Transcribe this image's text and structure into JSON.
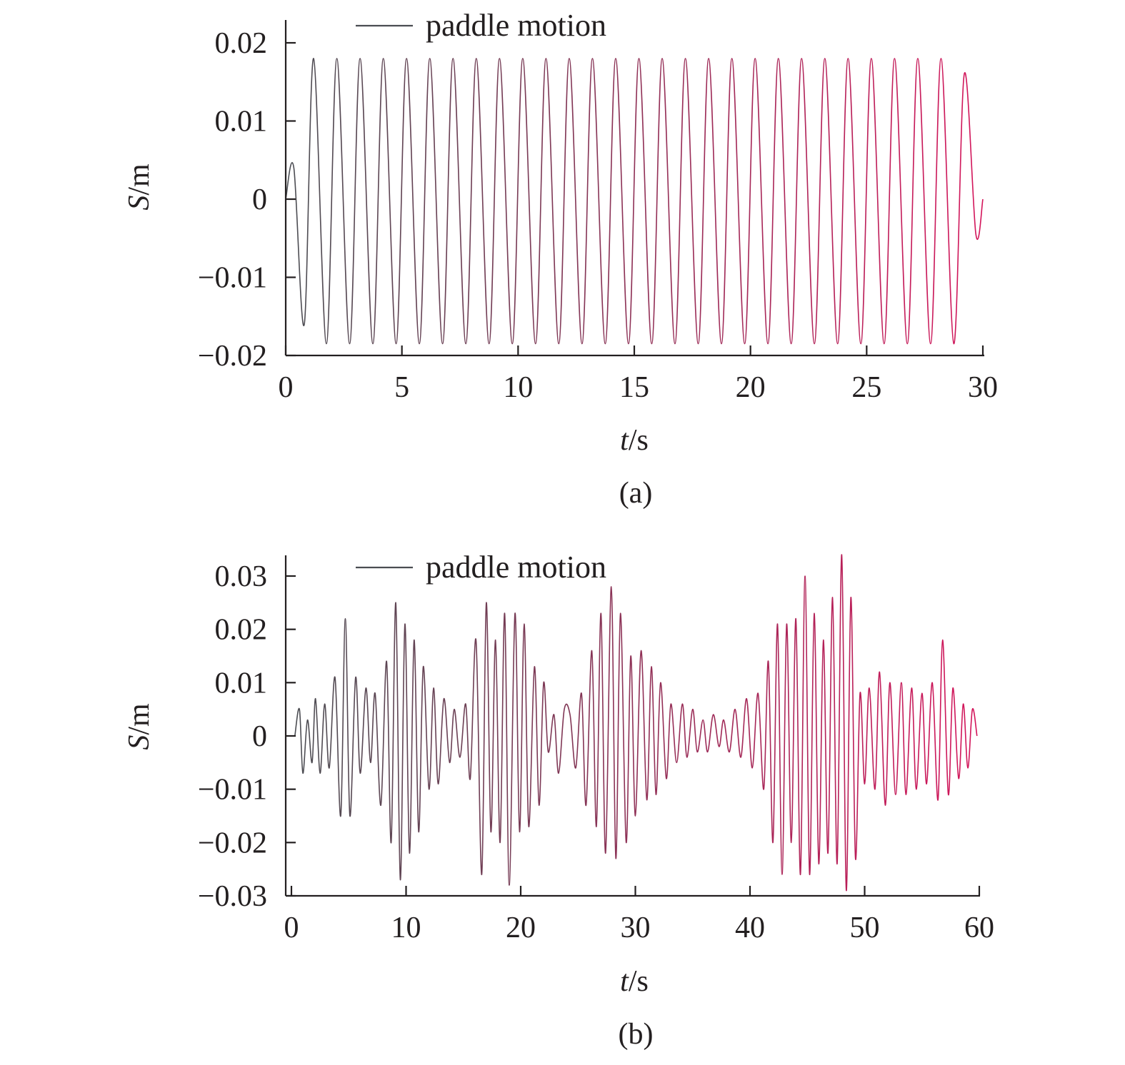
{
  "colors": {
    "axis": "#231f20",
    "series_start": "#4a4d52",
    "series_end": "#d4145a",
    "legend_line": "#4a4d52"
  },
  "chart_data": [
    {
      "type": "line",
      "panel_label": "(a)",
      "title": "",
      "xlabel": "t/s",
      "ylabel": "S/m",
      "xlabel_var": "t",
      "xlabel_unit": "/s",
      "ylabel_var": "S",
      "ylabel_unit": "/m",
      "xlim": [
        0,
        30
      ],
      "ylim": [
        -0.02,
        0.02
      ],
      "x_ticks": [
        0,
        5,
        10,
        15,
        20,
        25,
        30
      ],
      "x_tick_labels": [
        "0",
        "5",
        "10",
        "15",
        "20",
        "25",
        "30"
      ],
      "y_ticks": [
        0.02,
        0.01,
        0,
        -0.01,
        -0.02
      ],
      "y_tick_labels": [
        "0.02",
        "0.01",
        "0",
        "−0.01",
        "−0.02"
      ],
      "grid": false,
      "legend": {
        "position": "top-left",
        "entries": [
          "paddle motion"
        ]
      },
      "series": [
        {
          "name": "paddle motion",
          "x": [
            0,
            0.35,
            0.8,
            1.2,
            1.75,
            2.2,
            2.75,
            3.2,
            3.75,
            4.2,
            4.75,
            5.2,
            5.75,
            6.2,
            6.75,
            7.2,
            7.75,
            8.2,
            8.75,
            9.2,
            9.75,
            10.2,
            10.75,
            11.2,
            11.75,
            12.2,
            12.75,
            13.2,
            13.75,
            14.2,
            14.75,
            15.2,
            15.75,
            16.2,
            16.75,
            17.2,
            17.75,
            18.2,
            18.75,
            19.2,
            19.75,
            20.2,
            20.75,
            21.2,
            21.75,
            22.2,
            22.75,
            23.2,
            23.75,
            24.2,
            24.75,
            25.2,
            25.75,
            26.2,
            26.75,
            27.2,
            27.75,
            28.2,
            28.75,
            29.2,
            29.7,
            30
          ],
          "y": [
            0,
            0.004,
            -0.016,
            0.018,
            -0.0185,
            0.018,
            -0.0185,
            0.018,
            -0.0185,
            0.018,
            -0.0185,
            0.018,
            -0.0185,
            0.018,
            -0.0185,
            0.018,
            -0.0185,
            0.018,
            -0.0185,
            0.018,
            -0.0185,
            0.018,
            -0.0185,
            0.018,
            -0.0185,
            0.018,
            -0.0185,
            0.018,
            -0.0185,
            0.018,
            -0.0185,
            0.018,
            -0.0185,
            0.018,
            -0.0185,
            0.018,
            -0.0185,
            0.018,
            -0.0185,
            0.018,
            -0.0185,
            0.018,
            -0.0185,
            0.018,
            -0.0185,
            0.018,
            -0.0185,
            0.018,
            -0.0185,
            0.018,
            -0.0185,
            0.018,
            -0.0185,
            0.018,
            -0.0185,
            0.018,
            -0.0185,
            0.018,
            -0.0185,
            0.016,
            -0.0045,
            0
          ]
        }
      ]
    },
    {
      "type": "line",
      "panel_label": "(b)",
      "title": "",
      "xlabel": "t/s",
      "ylabel": "S/m",
      "xlabel_var": "t",
      "xlabel_unit": "/s",
      "ylabel_var": "S",
      "ylabel_unit": "/m",
      "xlim": [
        0,
        60
      ],
      "ylim": [
        -0.03,
        0.03
      ],
      "x_ticks": [
        0,
        10,
        20,
        30,
        40,
        50,
        60
      ],
      "x_tick_labels": [
        "0",
        "10",
        "20",
        "30",
        "40",
        "50",
        "60"
      ],
      "y_ticks": [
        0.03,
        0.02,
        0.01,
        0,
        -0.01,
        -0.02,
        -0.03
      ],
      "y_tick_labels": [
        "0.03",
        "0.02",
        "0.01",
        "0",
        "−0.01",
        "−0.02",
        "−0.03"
      ],
      "grid": false,
      "legend": {
        "position": "top-left",
        "entries": [
          "paddle motion"
        ]
      },
      "series": [
        {
          "name": "paddle motion",
          "x": [
            0.3,
            0.7,
            1.0,
            1.4,
            1.8,
            2.1,
            2.5,
            2.9,
            3.3,
            3.8,
            4.3,
            4.7,
            5.1,
            5.6,
            6.0,
            6.5,
            6.9,
            7.3,
            7.8,
            8.3,
            8.7,
            9.1,
            9.5,
            9.9,
            10.3,
            10.7,
            11.1,
            11.5,
            12.0,
            12.4,
            12.8,
            13.3,
            13.8,
            14.2,
            14.7,
            15.2,
            15.6,
            16.1,
            16.6,
            17.0,
            17.4,
            17.8,
            18.2,
            18.6,
            19.0,
            19.5,
            19.9,
            20.3,
            20.7,
            21.2,
            21.6,
            22.0,
            22.4,
            22.9,
            23.3,
            23.8,
            24.3,
            24.8,
            25.3,
            25.7,
            26.2,
            26.6,
            27.0,
            27.4,
            27.9,
            28.3,
            28.7,
            29.2,
            29.6,
            30.0,
            30.5,
            31.0,
            31.4,
            31.8,
            32.2,
            32.7,
            33.1,
            33.6,
            34.1,
            34.5,
            35.0,
            35.4,
            35.9,
            36.3,
            36.8,
            37.3,
            37.7,
            38.2,
            38.7,
            39.2,
            39.7,
            40.2,
            40.7,
            41.2,
            41.6,
            42.0,
            42.4,
            42.8,
            43.2,
            43.6,
            44.0,
            44.4,
            44.8,
            45.2,
            45.6,
            46.0,
            46.4,
            46.8,
            47.2,
            47.6,
            48.0,
            48.4,
            48.8,
            49.2,
            49.6,
            50.0,
            50.4,
            50.9,
            51.3,
            51.8,
            52.2,
            52.7,
            53.2,
            53.6,
            54.1,
            54.5,
            55.0,
            55.4,
            55.9,
            56.4,
            56.8,
            57.3,
            57.7,
            58.2,
            58.6,
            59.0,
            59.4,
            59.8
          ],
          "y": [
            0,
            0.005,
            -0.007,
            0.003,
            -0.005,
            0.007,
            -0.007,
            0.006,
            -0.006,
            0.011,
            -0.015,
            0.022,
            -0.015,
            0.011,
            -0.007,
            0.009,
            -0.005,
            0.008,
            -0.013,
            0.014,
            -0.02,
            0.025,
            -0.027,
            0.021,
            -0.022,
            0.018,
            -0.018,
            0.013,
            -0.01,
            0.009,
            -0.009,
            0.007,
            -0.005,
            0.005,
            -0.004,
            0.006,
            -0.008,
            0.018,
            -0.026,
            0.025,
            -0.018,
            0.018,
            -0.02,
            0.023,
            -0.028,
            0.023,
            -0.018,
            0.021,
            -0.017,
            0.013,
            -0.013,
            0.01,
            -0.003,
            0.004,
            -0.007,
            0.005,
            0.004,
            -0.006,
            0.008,
            -0.013,
            0.016,
            -0.017,
            0.023,
            -0.022,
            0.028,
            -0.023,
            0.023,
            -0.02,
            0.015,
            -0.015,
            0.016,
            -0.012,
            0.013,
            -0.011,
            0.01,
            -0.008,
            0.006,
            -0.005,
            0.006,
            -0.004,
            0.005,
            -0.003,
            0.003,
            -0.003,
            0.004,
            -0.002,
            0.003,
            -0.003,
            0.005,
            -0.004,
            0.007,
            -0.006,
            0.008,
            -0.01,
            0.014,
            -0.02,
            0.021,
            -0.026,
            0.021,
            -0.02,
            0.022,
            -0.026,
            0.03,
            -0.026,
            0.023,
            -0.024,
            0.018,
            -0.022,
            0.026,
            -0.024,
            0.034,
            -0.029,
            0.026,
            -0.023,
            0.008,
            -0.009,
            0.009,
            -0.01,
            0.012,
            -0.013,
            0.01,
            -0.011,
            0.01,
            -0.011,
            0.009,
            -0.01,
            0.008,
            -0.009,
            0.01,
            -0.012,
            0.018,
            -0.011,
            0.009,
            -0.008,
            0.006,
            -0.006,
            0.005,
            0
          ]
        }
      ]
    }
  ]
}
